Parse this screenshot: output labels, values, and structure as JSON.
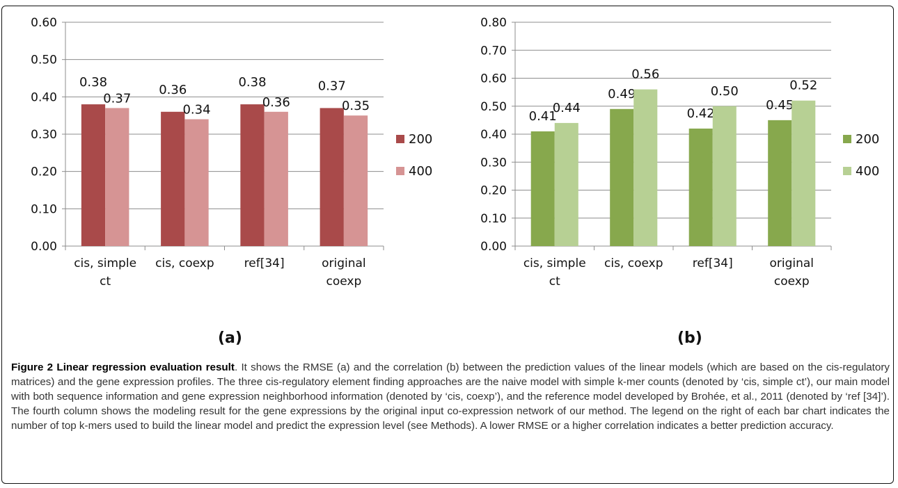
{
  "chart_data": [
    {
      "type": "bar",
      "panel": "(a)",
      "categories": [
        [
          "cis, simple",
          "ct"
        ],
        [
          "cis, coexp"
        ],
        [
          "ref[34]"
        ],
        [
          "original",
          "coexp"
        ]
      ],
      "series": [
        {
          "name": "200",
          "values": [
            0.38,
            0.36,
            0.38,
            0.37
          ],
          "labels": [
            "0.38",
            "0.36",
            "0.38",
            "0.37"
          ],
          "color": "#a94a4a"
        },
        {
          "name": "400",
          "values": [
            0.37,
            0.34,
            0.36,
            0.35
          ],
          "labels": [
            "0.37",
            "0.34",
            "0.36",
            "0.35"
          ],
          "color": "#d69494"
        }
      ],
      "yticks": [
        "0.00",
        "0.10",
        "0.20",
        "0.30",
        "0.40",
        "0.50",
        "0.60"
      ],
      "ylim": [
        0,
        0.6
      ],
      "grid": true,
      "legend": "right"
    },
    {
      "type": "bar",
      "panel": "(b)",
      "categories": [
        [
          "cis, simple",
          "ct"
        ],
        [
          "cis, coexp"
        ],
        [
          "ref[34]"
        ],
        [
          "original",
          "coexp"
        ]
      ],
      "series": [
        {
          "name": "200",
          "values": [
            0.41,
            0.49,
            0.42,
            0.45
          ],
          "labels": [
            "0.41",
            "0.49",
            "0.42",
            "0.45"
          ],
          "color": "#87a84d"
        },
        {
          "name": "400",
          "values": [
            0.44,
            0.56,
            0.5,
            0.52
          ],
          "labels": [
            "0.44",
            "0.56",
            "0.50",
            "0.52"
          ],
          "color": "#b7d094"
        }
      ],
      "yticks": [
        "0.00",
        "0.10",
        "0.20",
        "0.30",
        "0.40",
        "0.50",
        "0.60",
        "0.70",
        "0.80"
      ],
      "ylim": [
        0,
        0.8
      ],
      "grid": true,
      "legend": "right"
    }
  ],
  "caption": {
    "figure_label": "Figure 2",
    "title": "Linear regression evaluation result",
    "body": ". It shows the RMSE (a) and the correlation (b) between the prediction values of the linear models (which are based on the cis-regulatory matrices) and the gene expression profiles. The three cis-regulatory element finding approaches are the naive model with simple k-mer counts (denoted by ‘cis, simple ct’), our main model with both sequence information and gene expression neighborhood information (denoted by ‘cis, coexp’), and the reference model developed by Brohée, et al., 2011 (denoted by ‘ref [34]’). The fourth column shows the modeling result for the gene expressions by the original input co-expression network of our method. The legend on the right of each bar chart indicates the number of top k-mers used to build the linear model and predict the expression level (see Methods). A lower RMSE or a higher correlation indicates a better prediction accuracy."
  }
}
